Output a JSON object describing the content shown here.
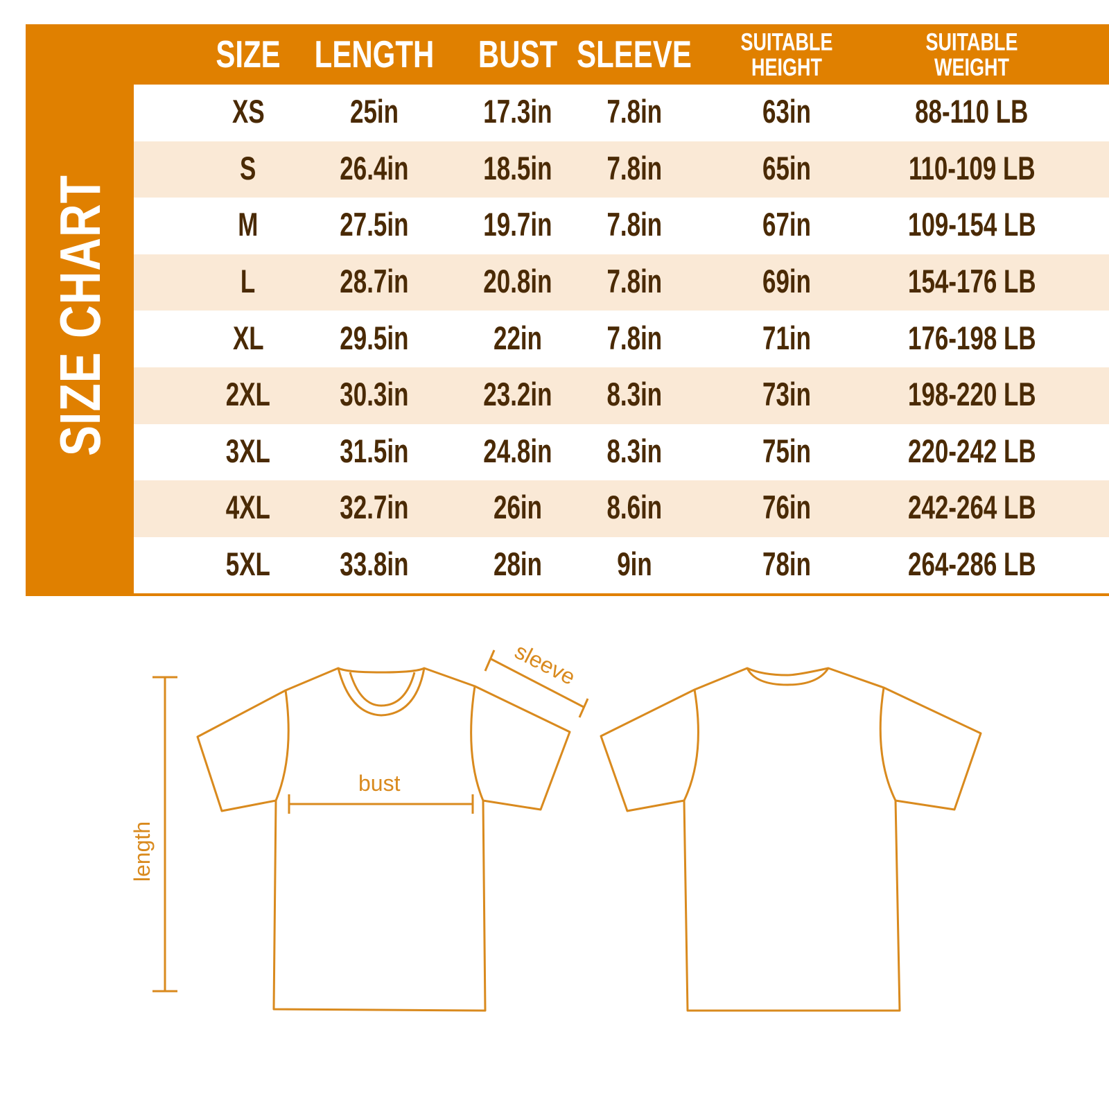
{
  "chart": {
    "title": "SIZE CHART",
    "headers": [
      "SIZE",
      "LENGTH",
      "BUST",
      "SLEEVE",
      "SUITABLE HEIGHT",
      "SUITABLE WEIGHT"
    ],
    "rows": [
      [
        "XS",
        "25in",
        "17.3in",
        "7.8in",
        "63in",
        "88-110 LB"
      ],
      [
        "S",
        "26.4in",
        "18.5in",
        "7.8in",
        "65in",
        "110-109 LB"
      ],
      [
        "M",
        "27.5in",
        "19.7in",
        "7.8in",
        "67in",
        "109-154 LB"
      ],
      [
        "L",
        "28.7in",
        "20.8in",
        "7.8in",
        "69in",
        "154-176 LB"
      ],
      [
        "XL",
        "29.5in",
        "22in",
        "7.8in",
        "71in",
        "176-198 LB"
      ],
      [
        "2XL",
        "30.3in",
        "23.2in",
        "8.3in",
        "73in",
        "198-220 LB"
      ],
      [
        "3XL",
        "31.5in",
        "24.8in",
        "8.3in",
        "75in",
        "220-242 LB"
      ],
      [
        "4XL",
        "32.7in",
        "26in",
        "8.6in",
        "76in",
        "242-264 LB"
      ],
      [
        "5XL",
        "33.8in",
        "28in",
        "9in",
        "78in",
        "264-286 LB"
      ]
    ]
  },
  "diagram": {
    "sleeve_label": "sleeve",
    "bust_label": "bust",
    "length_label": "length"
  },
  "colors": {
    "accent": "#E08000",
    "row_alt": "#FAE9D6",
    "text": "#4A2A05",
    "outline": "#D98A1E"
  }
}
